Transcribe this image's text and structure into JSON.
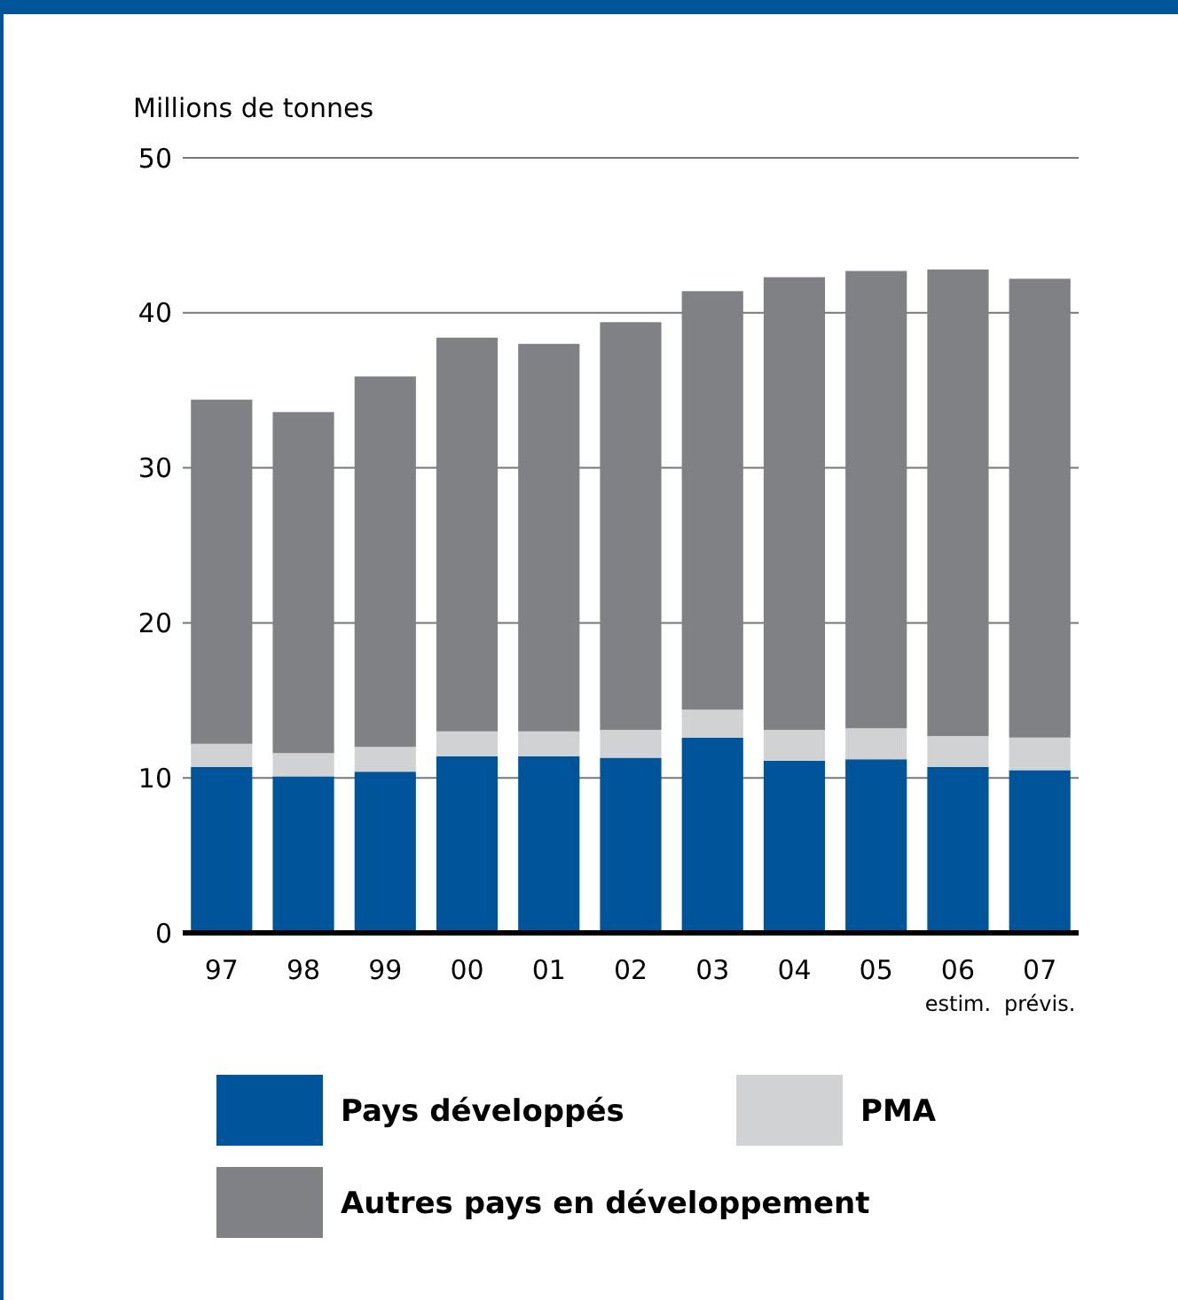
{
  "chart_data": {
    "type": "bar",
    "stacked": true,
    "ylabel": "Millions de tonnes",
    "categories": [
      "97",
      "98",
      "99",
      "00",
      "01",
      "02",
      "03",
      "04",
      "05",
      "06\nestim.",
      "07\nprévis."
    ],
    "series": [
      {
        "name": "Pays développés",
        "color": "#00559a",
        "values": [
          10.7,
          10.1,
          10.4,
          11.4,
          11.4,
          11.3,
          12.6,
          11.1,
          11.2,
          10.7,
          10.5
        ]
      },
      {
        "name": "PMA",
        "color": "#d1d2d4",
        "values": [
          1.5,
          1.5,
          1.6,
          1.6,
          1.6,
          1.8,
          1.8,
          2.0,
          2.0,
          2.0,
          2.1
        ]
      },
      {
        "name": "Autres pays en développement",
        "color": "#808184",
        "values": [
          22.2,
          22.0,
          23.9,
          25.4,
          25.0,
          26.3,
          27.0,
          29.2,
          29.5,
          30.1,
          29.6
        ]
      }
    ],
    "ylim": [
      0,
      50
    ],
    "yticks": [
      0,
      10,
      20,
      30,
      40,
      50
    ],
    "grid": "y",
    "legend": "bottom"
  }
}
